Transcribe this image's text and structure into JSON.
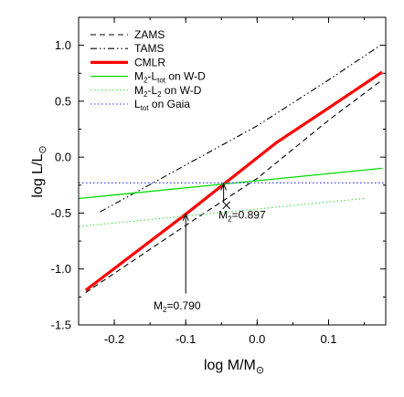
{
  "chart_data": {
    "type": "line",
    "title": "",
    "xlabel": {
      "main": "log M/M",
      "sub": "⊙"
    },
    "ylabel": {
      "main": "log L/L",
      "sub": "⊙"
    },
    "xlim": [
      -0.25,
      0.18
    ],
    "ylim": [
      -1.5,
      1.25
    ],
    "xticks": [
      -0.2,
      -0.1,
      0.0,
      0.1
    ],
    "xtick_labels": [
      "-0.2",
      "-0.1",
      "0.0",
      "0.1"
    ],
    "yticks": [
      -1.5,
      -1.0,
      -0.5,
      0.0,
      0.5,
      1.0
    ],
    "ytick_labels": [
      "-1.5",
      "-1.0",
      "-0.5",
      "0.0",
      "0.5",
      "1.0"
    ],
    "legend_position": "top-left",
    "series": [
      {
        "name": "ZAMS",
        "color": "#000000",
        "dash": "dashed",
        "x": [
          -0.24,
          -0.1,
          0.0,
          0.1,
          0.175
        ],
        "y": [
          -1.21,
          -0.61,
          -0.19,
          0.33,
          0.69
        ]
      },
      {
        "name": "TAMS",
        "color": "#000000",
        "dash": "dashdotdot",
        "x": [
          -0.22,
          -0.1,
          0.0,
          0.1,
          0.175
        ],
        "y": [
          -0.49,
          -0.07,
          0.28,
          0.69,
          1.01
        ]
      },
      {
        "name": "CMLR",
        "color": "#ff0000",
        "dash": "solid",
        "x": [
          -0.24,
          -0.1,
          0.027,
          0.1,
          0.175
        ],
        "y": [
          -1.19,
          -0.51,
          0.13,
          0.44,
          0.76
        ]
      },
      {
        "name_parts": [
          "M",
          "2",
          "-L",
          "tot",
          " on W-D"
        ],
        "color": "#00dd00",
        "dash": "solid",
        "x": [
          -0.25,
          0.175
        ],
        "y": [
          -0.37,
          -0.1
        ]
      },
      {
        "name_parts": [
          "M",
          "2",
          "-L",
          "2",
          " on W-D"
        ],
        "color": "#44dd44",
        "dash": "dotted",
        "x": [
          -0.25,
          0.15
        ],
        "y": [
          -0.62,
          -0.37
        ]
      },
      {
        "name_parts": [
          "L",
          "tot",
          " on Gaia",
          "",
          ""
        ],
        "color": "#3333ff",
        "dash": "dotted",
        "x": [
          -0.25,
          0.18
        ],
        "y": [
          -0.23,
          -0.23
        ]
      }
    ],
    "annotations": [
      {
        "text_parts": [
          "M",
          "2",
          "=0.790"
        ],
        "x": -0.1,
        "y": -0.51,
        "arrow_from_y": -1.22
      },
      {
        "text_parts": [
          "M",
          "2",
          "=0.897"
        ],
        "x": -0.047,
        "y": -0.24,
        "arrow_from_y": -0.4
      }
    ],
    "marker": {
      "type": "x",
      "x": -0.043,
      "y": -0.43
    }
  }
}
